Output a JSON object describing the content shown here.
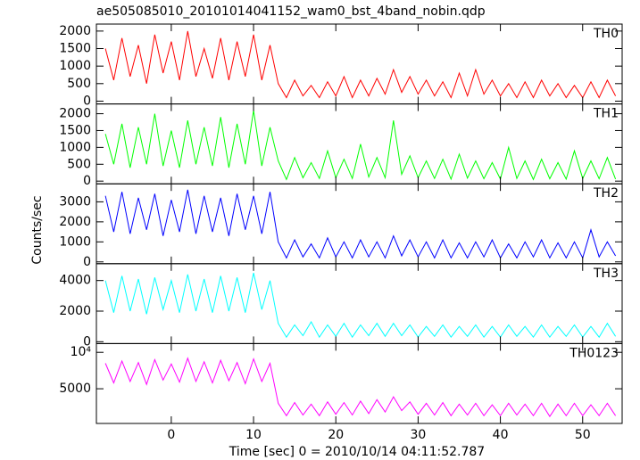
{
  "chart_data": {
    "type": "line",
    "title": "ae505085010_20101014041152_wam0_bst_4band_nobin.qdp",
    "xlabel": "Time [sec] 0 = 2010/10/14 04:11:52.787",
    "ylabel": "Counts/sec",
    "xlim": [
      -9.1,
      54.8
    ],
    "xticks": [
      0,
      10,
      20,
      30,
      40,
      50
    ],
    "x": [
      -8,
      -7,
      -6,
      -5,
      -4,
      -3,
      -2,
      -1,
      0,
      1,
      2,
      3,
      4,
      5,
      6,
      7,
      8,
      9,
      10,
      11,
      12,
      13,
      14,
      15,
      16,
      17,
      18,
      19,
      20,
      21,
      22,
      23,
      24,
      25,
      26,
      27,
      28,
      29,
      30,
      31,
      32,
      33,
      34,
      35,
      36,
      37,
      38,
      39,
      40,
      41,
      42,
      43,
      44,
      45,
      46,
      47,
      48,
      49,
      50,
      51,
      52,
      53,
      54
    ],
    "series": [
      {
        "name": "TH0",
        "color": "#ff0000",
        "ylim": [
          -80,
          2200
        ],
        "yticks": [
          0,
          500,
          1000,
          1500,
          2000
        ],
        "values": [
          1500,
          600,
          1800,
          700,
          1600,
          500,
          1900,
          800,
          1700,
          600,
          2000,
          700,
          1500,
          650,
          1800,
          600,
          1700,
          700,
          1900,
          600,
          1600,
          500,
          100,
          600,
          150,
          450,
          100,
          550,
          150,
          700,
          100,
          600,
          150,
          650,
          200,
          900,
          250,
          700,
          200,
          600,
          150,
          550,
          100,
          800,
          150,
          900,
          200,
          600,
          150,
          500,
          100,
          550,
          100,
          600,
          150,
          500,
          100,
          450,
          100,
          550,
          100,
          600,
          150
        ]
      },
      {
        "name": "TH1",
        "color": "#00ff00",
        "ylim": [
          -80,
          2290
        ],
        "yticks": [
          0,
          500,
          1000,
          1500,
          2000
        ],
        "values": [
          1400,
          500,
          1700,
          400,
          1600,
          500,
          2000,
          450,
          1500,
          400,
          1800,
          500,
          1600,
          450,
          1900,
          400,
          1700,
          500,
          2100,
          450,
          1600,
          600,
          50,
          700,
          100,
          550,
          80,
          900,
          100,
          650,
          80,
          1100,
          120,
          700,
          100,
          1800,
          200,
          750,
          100,
          600,
          80,
          650,
          60,
          800,
          90,
          600,
          70,
          550,
          60,
          1000,
          80,
          600,
          50,
          650,
          70,
          550,
          60,
          900,
          80,
          600,
          70,
          700,
          60
        ]
      },
      {
        "name": "TH2",
        "color": "#0000ff",
        "ylim": [
          -90,
          3900
        ],
        "yticks": [
          0,
          1000,
          2000,
          3000
        ],
        "values": [
          3300,
          1500,
          3500,
          1400,
          3200,
          1600,
          3400,
          1300,
          3100,
          1500,
          3600,
          1400,
          3300,
          1500,
          3200,
          1300,
          3400,
          1600,
          3300,
          1400,
          3500,
          1000,
          200,
          1100,
          250,
          900,
          200,
          1200,
          250,
          1000,
          200,
          1100,
          250,
          1000,
          200,
          1300,
          300,
          1100,
          250,
          1000,
          200,
          1100,
          200,
          950,
          200,
          1000,
          250,
          1100,
          200,
          900,
          200,
          1000,
          250,
          1100,
          200,
          950,
          200,
          1000,
          200,
          1600,
          250,
          1000,
          300
        ]
      },
      {
        "name": "TH3",
        "color": "#00ffff",
        "ylim": [
          -120,
          5100
        ],
        "yticks": [
          0,
          2000,
          4000
        ],
        "values": [
          4000,
          1900,
          4300,
          2000,
          4100,
          1800,
          4200,
          2100,
          4000,
          1900,
          4400,
          2000,
          4100,
          1900,
          4300,
          2000,
          4200,
          1900,
          4500,
          2100,
          4000,
          1200,
          300,
          1100,
          400,
          1300,
          300,
          1100,
          350,
          1200,
          300,
          1100,
          400,
          1200,
          350,
          1200,
          400,
          1100,
          300,
          1000,
          350,
          1100,
          300,
          1000,
          350,
          1100,
          300,
          1000,
          300,
          1100,
          350,
          1000,
          300,
          1100,
          300,
          1000,
          350,
          1100,
          300,
          1000,
          300,
          1200,
          350
        ]
      },
      {
        "name": "TH0123",
        "color": "#ff00ff",
        "ylim": [
          240,
          11200
        ],
        "yticks": [
          5000,
          {
            "value": 10000,
            "label": "10⁴"
          }
        ],
        "values": [
          8500,
          5800,
          8800,
          6000,
          8600,
          5600,
          9000,
          6200,
          8400,
          5900,
          9200,
          6000,
          8700,
          5800,
          8900,
          6100,
          8600,
          5700,
          9100,
          6000,
          8500,
          3000,
          1300,
          3100,
          1400,
          2900,
          1300,
          3200,
          1500,
          3100,
          1400,
          3300,
          1600,
          3500,
          1800,
          3900,
          2000,
          3200,
          1500,
          3000,
          1400,
          3100,
          1300,
          2900,
          1400,
          3000,
          1300,
          2800,
          1300,
          3000,
          1400,
          2900,
          1300,
          3000,
          1200,
          2900,
          1300,
          3000,
          1300,
          2800,
          1300,
          3000,
          1300
        ]
      }
    ]
  }
}
